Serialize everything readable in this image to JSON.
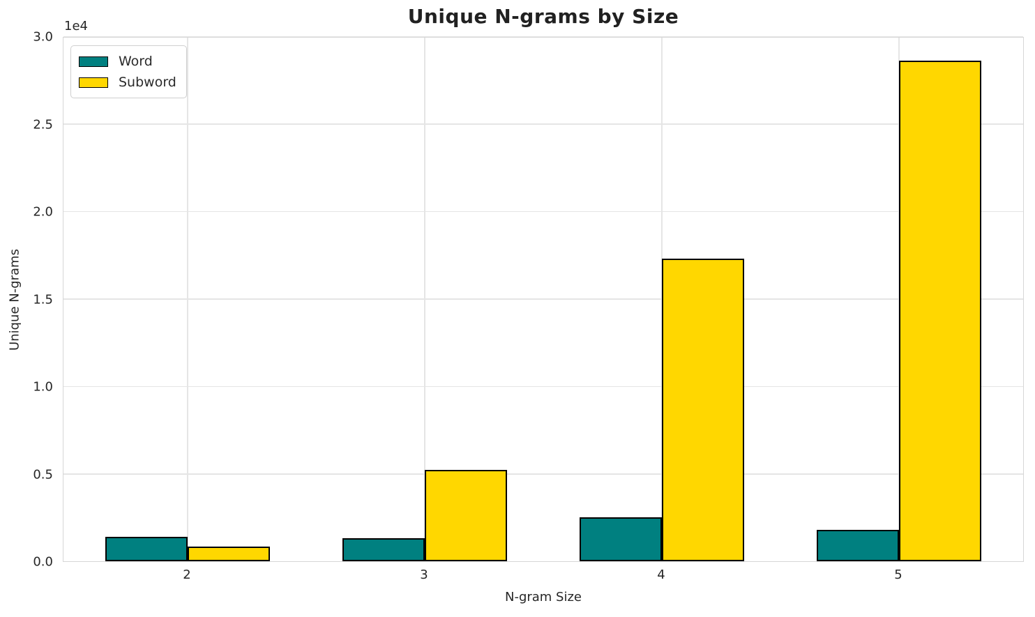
{
  "chart_data": {
    "type": "bar",
    "title": "Unique N-grams by Size",
    "xlabel": "N-gram Size",
    "ylabel": "Unique N-grams",
    "y_offset_label": "1e4",
    "categories": [
      "2",
      "3",
      "4",
      "5"
    ],
    "series": [
      {
        "name": "Word",
        "color": "#008080",
        "values": [
          1400,
          1300,
          2500,
          1800
        ]
      },
      {
        "name": "Subword",
        "color": "#FFD700",
        "values": [
          850,
          5200,
          17300,
          28600
        ]
      }
    ],
    "ylim": [
      0,
      30000
    ],
    "yticks": [
      0,
      5000,
      10000,
      15000,
      20000,
      25000,
      30000
    ],
    "ytick_labels": [
      "0.0",
      "0.5",
      "1.0",
      "1.5",
      "2.0",
      "2.5",
      "3.0"
    ],
    "bar_edge_color": "#000000",
    "grid": true,
    "legend_position": "upper left"
  }
}
